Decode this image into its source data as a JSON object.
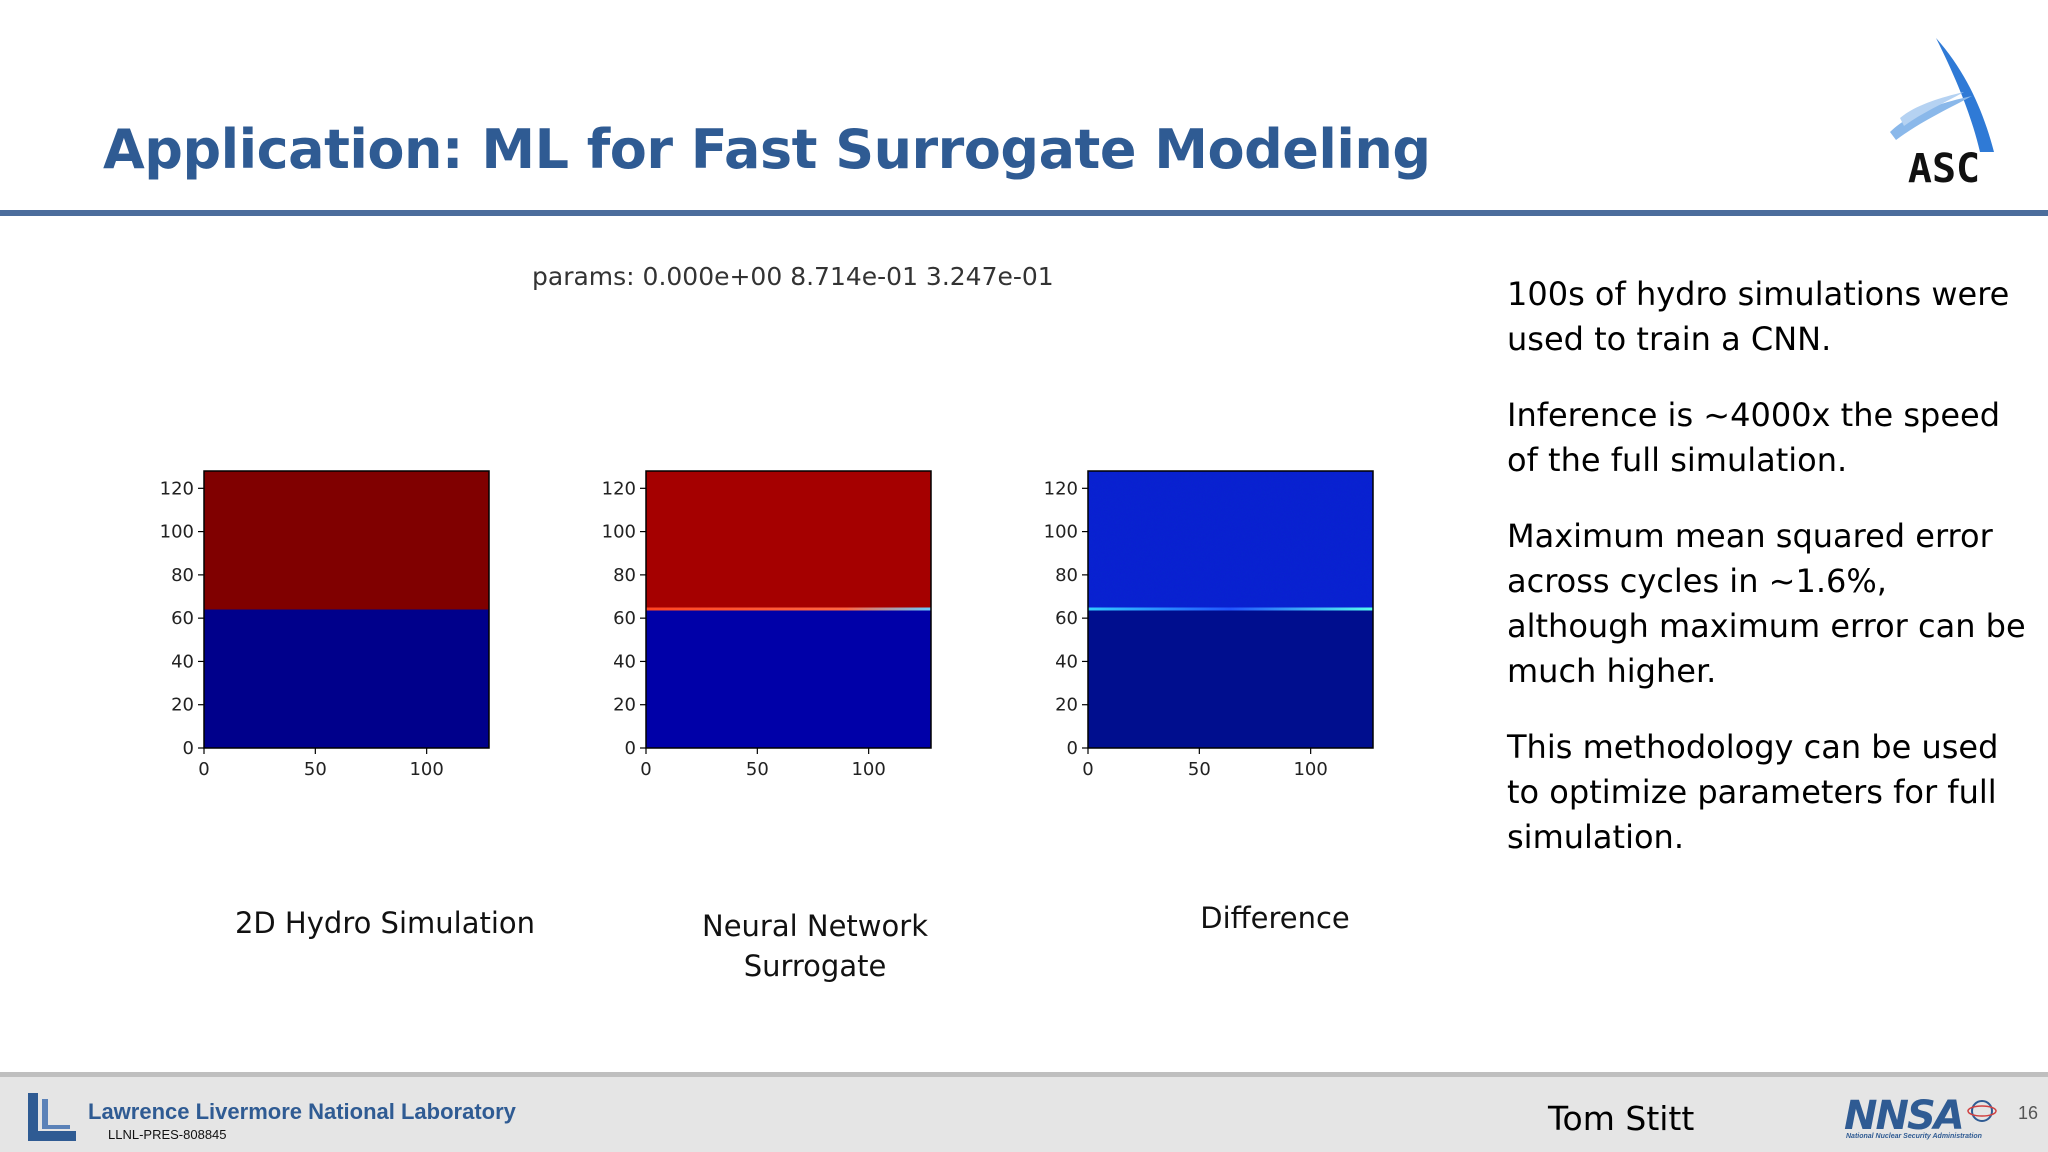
{
  "slide": {
    "title": "Application: ML for Fast Surrogate Modeling",
    "logo_text": "ASC"
  },
  "figure": {
    "params_label": "params: 0.000e+00 8.714e-01 3.247e-01",
    "captions": [
      "2D Hydro Simulation",
      "Neural Network",
      "Surrogate",
      "Difference"
    ]
  },
  "chart_data": [
    {
      "type": "heatmap",
      "x_ticks": [
        "0",
        "50",
        "100"
      ],
      "y_ticks": [
        "0",
        "20",
        "40",
        "60",
        "80",
        "100",
        "120"
      ],
      "xlim": [
        0,
        128
      ],
      "ylim": [
        0,
        128
      ],
      "interface_y": 64,
      "colors": {
        "upper": "#800000",
        "lower": "#00008b"
      }
    },
    {
      "type": "heatmap",
      "x_ticks": [
        "0",
        "50",
        "100"
      ],
      "y_ticks": [
        "0",
        "20",
        "40",
        "60",
        "80",
        "100",
        "120"
      ],
      "xlim": [
        0,
        128
      ],
      "ylim": [
        0,
        128
      ],
      "interface_y": 64,
      "colors": {
        "upper": "#a50000",
        "lower": "#0000a8"
      }
    },
    {
      "type": "heatmap",
      "x_ticks": [
        "0",
        "50",
        "100"
      ],
      "y_ticks": [
        "0",
        "20",
        "40",
        "60",
        "80",
        "100",
        "120"
      ],
      "xlim": [
        0,
        128
      ],
      "ylim": [
        0,
        128
      ],
      "interface_y": 64,
      "colors": {
        "upper": "#0a1ed4",
        "lower": "#000e8e"
      }
    }
  ],
  "bullets": [
    "100s of hydro simulations were used to train a CNN.",
    "Inference is ~4000x the speed of the full simulation.",
    "Maximum mean squared error across cycles in ~1.6%, although maximum error can be much higher.",
    "This methodology can be used to optimize parameters for full simulation."
  ],
  "footer": {
    "lab_name": "Lawrence Livermore National Laboratory",
    "doc_code": "LLNL-PRES-808845",
    "presenter": "Tom Stitt",
    "nnsa_subtitle": "National Nuclear Security Administration",
    "page_number": "16"
  },
  "colors": {
    "title": "#2f5b93",
    "rule": "#4c6d9c",
    "footer_bg": "#e5e5e5"
  }
}
